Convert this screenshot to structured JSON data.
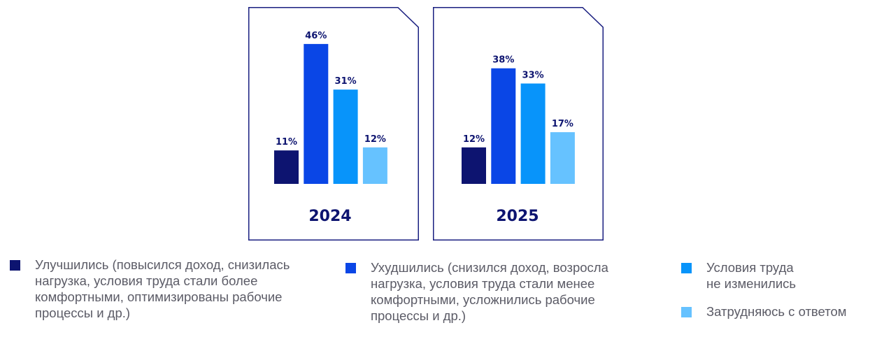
{
  "chart_data": {
    "type": "bar",
    "categories": [
      "Улучшились (повысился доход, снизилась нагрузка, условия труда стали более комфортными, оптимизированы рабочие процессы и др.)",
      "Ухудшились (снизился доход, возросла нагрузка, условия труда стали менее комфортными, усложнились рабочие процессы и др.)",
      "Условия труда не изменились",
      "Затрудняюсь с ответом"
    ],
    "colors": [
      "#0d1470",
      "#0a46e6",
      "#0894fa",
      "#66c2ff"
    ],
    "ylim": [
      0,
      50
    ],
    "panels": [
      {
        "year": "2024",
        "values": [
          11,
          46,
          31,
          12
        ],
        "labels": [
          "11%",
          "46%",
          "31%",
          "12%"
        ]
      },
      {
        "year": "2025",
        "values": [
          12,
          38,
          33,
          17
        ],
        "labels": [
          "12%",
          "38%",
          "33%",
          "17%"
        ]
      }
    ]
  },
  "legend": [
    {
      "lines": [
        "Улучшились (повысился доход, снизилась",
        "нагрузка, условия труда стали более",
        "комфортными, оптимизированы рабочие",
        "процессы и др.)"
      ]
    },
    {
      "lines": [
        "Ухудшились (снизился доход, возросла",
        "нагрузка, условия труда стали менее",
        "комфортными, усложнились рабочие",
        "процессы и др.)"
      ]
    },
    {
      "lines": [
        "Условия труда",
        "не изменились"
      ]
    },
    {
      "lines": [
        "Затрудняюсь с ответом"
      ]
    }
  ]
}
